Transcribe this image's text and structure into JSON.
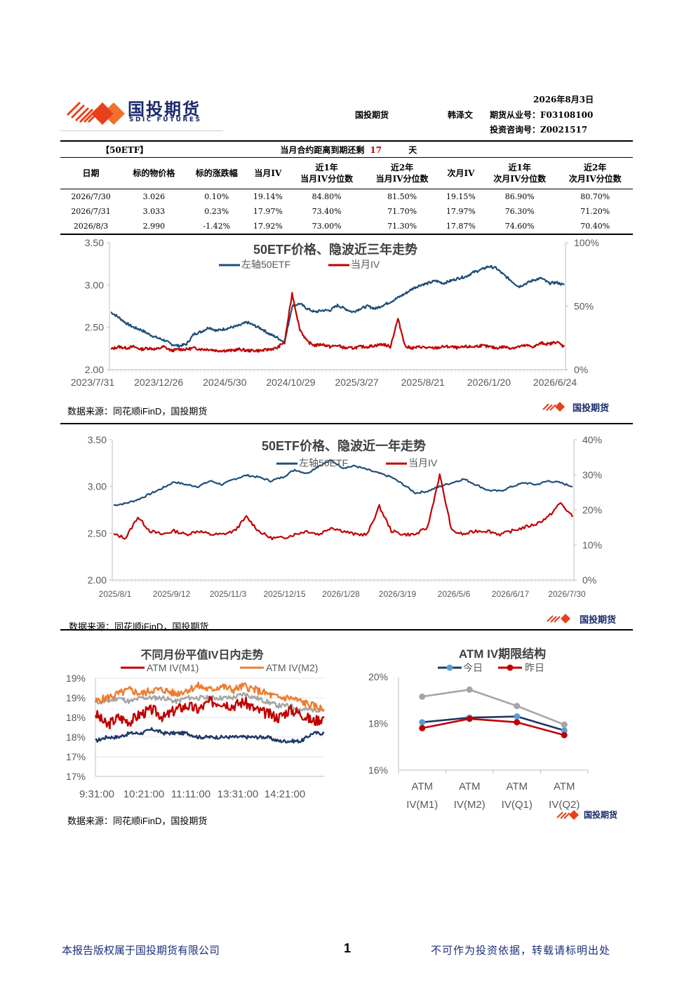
{
  "header": {
    "logo_text": "国投期货",
    "logo_sub": "SDIC FUTURES",
    "date": "2026年8月3日",
    "company": "国投期货",
    "analyst": "韩泽文",
    "license": "期货从业号：F03108100",
    "consult": "投资咨询号：Z0021517"
  },
  "table": {
    "tag": "【50ETF】",
    "days_label": "当月合约距离到期还剩",
    "days_value": "17",
    "days_unit": "天",
    "columns": [
      [
        "日期"
      ],
      [
        "标的物价格"
      ],
      [
        "标的涨跌幅"
      ],
      [
        "当月IV"
      ],
      [
        "近1年",
        "当月IV分位数"
      ],
      [
        "近2年",
        "当月IV分位数"
      ],
      [
        "次月IV"
      ],
      [
        "近1年",
        "次月IV分位数"
      ],
      [
        "近2年",
        "次月IV分位数"
      ]
    ],
    "rows": [
      [
        "2026/7/30",
        "3.026",
        "0.10%",
        "19.14%",
        "84.80%",
        "81.50%",
        "19.15%",
        "86.90%",
        "80.70%"
      ],
      [
        "2026/7/31",
        "3.033",
        "0.23%",
        "17.97%",
        "73.40%",
        "71.70%",
        "17.97%",
        "76.30%",
        "71.20%"
      ],
      [
        "2026/8/3",
        "2.990",
        "-1.42%",
        "17.92%",
        "73.00%",
        "71.30%",
        "17.87%",
        "74.60%",
        "70.40%"
      ]
    ]
  },
  "colors": {
    "etf": "#1f4e79",
    "iv": "#c00000",
    "m2": "#ed7d31",
    "gray": "#a5a5a5",
    "today": "#5b9bd5",
    "navy": "#1f3864"
  },
  "chart_data": [
    {
      "type": "line",
      "title": "50ETF价格、隐波近三年走势",
      "legend": [
        "左轴50ETF",
        "当月IV"
      ],
      "x_ticks": [
        "2023/7/31",
        "2023/12/26",
        "2024/5/30",
        "2024/10/29",
        "2025/3/27",
        "2025/8/21",
        "2026/1/20",
        "2026/6/24"
      ],
      "y_left": {
        "ticks": [
          "2.00",
          "2.50",
          "3.00",
          "3.50"
        ],
        "range": [
          2.0,
          3.5
        ]
      },
      "y_right": {
        "ticks": [
          "0%",
          "50%",
          "100%"
        ],
        "range": [
          0,
          100
        ]
      },
      "series": [
        {
          "name": "左轴50ETF",
          "axis": "left",
          "values": [
            2.68,
            2.62,
            2.55,
            2.5,
            2.47,
            2.42,
            2.38,
            2.35,
            2.3,
            2.28,
            2.3,
            2.42,
            2.45,
            2.5,
            2.46,
            2.48,
            2.5,
            2.52,
            2.56,
            2.52,
            2.48,
            2.42,
            2.38,
            2.32,
            2.75,
            2.78,
            2.72,
            2.68,
            2.7,
            2.7,
            2.76,
            2.72,
            2.68,
            2.72,
            2.75,
            2.72,
            2.76,
            2.8,
            2.85,
            2.9,
            2.96,
            3.0,
            3.02,
            3.05,
            3.02,
            3.05,
            3.08,
            3.1,
            3.15,
            3.18,
            3.22,
            3.2,
            3.12,
            3.05,
            2.98,
            3.02,
            3.06,
            3.08,
            3.02,
            3.03,
            3.0
          ]
        },
        {
          "name": "当月IV",
          "axis": "right",
          "values": [
            16,
            18,
            17,
            18,
            16,
            17,
            16,
            18,
            15,
            16,
            16,
            17,
            16,
            16,
            15,
            15,
            15,
            16,
            15,
            15,
            15,
            16,
            17,
            22,
            60,
            32,
            22,
            19,
            20,
            18,
            19,
            17,
            17,
            18,
            18,
            19,
            20,
            18,
            40,
            18,
            17,
            18,
            17,
            17,
            18,
            18,
            17,
            18,
            18,
            19,
            18,
            17,
            18,
            17,
            18,
            19,
            18,
            21,
            20,
            22,
            18
          ]
        }
      ]
    },
    {
      "type": "line",
      "title": "50ETF价格、隐波近一年走势",
      "legend": [
        "左轴50ETF",
        "当月IV"
      ],
      "x_ticks": [
        "2025/8/1",
        "2025/9/12",
        "2025/11/3",
        "2025/12/15",
        "2026/1/28",
        "2026/3/19",
        "2026/5/6",
        "2026/6/17",
        "2026/7/30"
      ],
      "y_left": {
        "ticks": [
          "2.00",
          "2.50",
          "3.00",
          "3.50"
        ],
        "range": [
          2.0,
          3.5
        ]
      },
      "y_right": {
        "ticks": [
          "0%",
          "10%",
          "20%",
          "30%",
          "40%"
        ],
        "range": [
          0,
          40
        ]
      },
      "series": [
        {
          "name": "左轴50ETF",
          "axis": "left",
          "values": [
            2.8,
            2.82,
            2.86,
            2.92,
            2.98,
            3.05,
            3.02,
            3.0,
            3.06,
            3.02,
            3.08,
            3.12,
            3.1,
            3.06,
            3.1,
            3.18,
            3.14,
            3.22,
            3.28,
            3.2,
            3.22,
            3.18,
            3.14,
            3.1,
            3.02,
            2.93,
            2.95,
            3.0,
            3.04,
            3.08,
            3.02,
            2.96,
            2.95,
            3.0,
            3.04,
            3.02,
            3.06,
            3.04,
            3.0
          ]
        },
        {
          "name": "当月IV",
          "axis": "right",
          "values": [
            13,
            12,
            18,
            14,
            13,
            14,
            13,
            14,
            13,
            13,
            14,
            18,
            14,
            12,
            12,
            13,
            14,
            13,
            15,
            14,
            13,
            13,
            21,
            14,
            13,
            13,
            15,
            30,
            14,
            13,
            14,
            14,
            13,
            14,
            15,
            16,
            18,
            22,
            18
          ]
        }
      ]
    },
    {
      "type": "line",
      "title": "不同月份平值IV日内走势",
      "legend": [
        "ATM IV(M1)",
        "ATM IV(M2)"
      ],
      "x_ticks": [
        "9:31:00",
        "10:21:00",
        "11:11:00",
        "13:31:00",
        "14:21:00"
      ],
      "y_ticks": [
        "19%",
        "19%",
        "18%",
        "18%",
        "17%",
        "17%"
      ],
      "y_range": [
        17.0,
        19.5
      ],
      "series": [
        {
          "name": "ATM IV(M1)",
          "values": [
            18.6,
            18.3,
            18.5,
            18.4,
            18.6,
            18.7,
            18.5,
            18.7,
            18.8,
            18.7,
            18.9,
            18.9,
            18.8,
            18.9,
            18.7,
            18.6,
            18.5,
            18.7,
            18.6,
            18.4,
            18.5
          ]
        },
        {
          "name": "ATM IV(M2)",
          "values": [
            18.9,
            19.0,
            19.1,
            19.2,
            19.1,
            19.2,
            19.2,
            19.1,
            19.2,
            19.3,
            19.2,
            19.3,
            19.2,
            19.3,
            19.2,
            19.1,
            19.0,
            19.0,
            18.9,
            18.8,
            18.7
          ]
        },
        {
          "name": "",
          "values": [
            18.9,
            18.9,
            19.0,
            18.9,
            19.0,
            19.0,
            19.0,
            18.9,
            19.0,
            19.0,
            19.0,
            19.0,
            19.0,
            19.1,
            19.0,
            18.9,
            18.8,
            18.8,
            18.7,
            18.7,
            18.7
          ]
        },
        {
          "name": "",
          "values": [
            17.9,
            18.0,
            18.0,
            18.1,
            18.1,
            18.2,
            18.1,
            18.1,
            18.1,
            18.0,
            18.0,
            18.0,
            18.0,
            18.0,
            18.0,
            18.0,
            17.9,
            17.9,
            17.9,
            18.1,
            18.1
          ]
        }
      ]
    },
    {
      "type": "line",
      "title": "ATM IV期限结构",
      "legend": [
        "今日",
        "昨日"
      ],
      "categories": [
        "ATM IV(M1)",
        "ATM IV(M2)",
        "ATM IV(Q1)",
        "ATM IV(Q2)"
      ],
      "y_ticks": [
        "16%",
        "18%",
        "20%"
      ],
      "y_range": [
        16,
        20
      ],
      "series": [
        {
          "name": "今日",
          "values": [
            18.05,
            18.25,
            18.3,
            17.7
          ]
        },
        {
          "name": "昨日",
          "values": [
            17.8,
            18.2,
            18.05,
            17.5
          ]
        },
        {
          "name": "",
          "values": [
            19.15,
            19.45,
            18.75,
            17.95
          ]
        }
      ]
    }
  ],
  "source_text": "数据来源：同花顺iFinD，国投期货",
  "footer": {
    "left": "本报告版权属于国投期货有限公司",
    "page": "1",
    "right": "不可作为投资依据，转载请标明出处"
  }
}
